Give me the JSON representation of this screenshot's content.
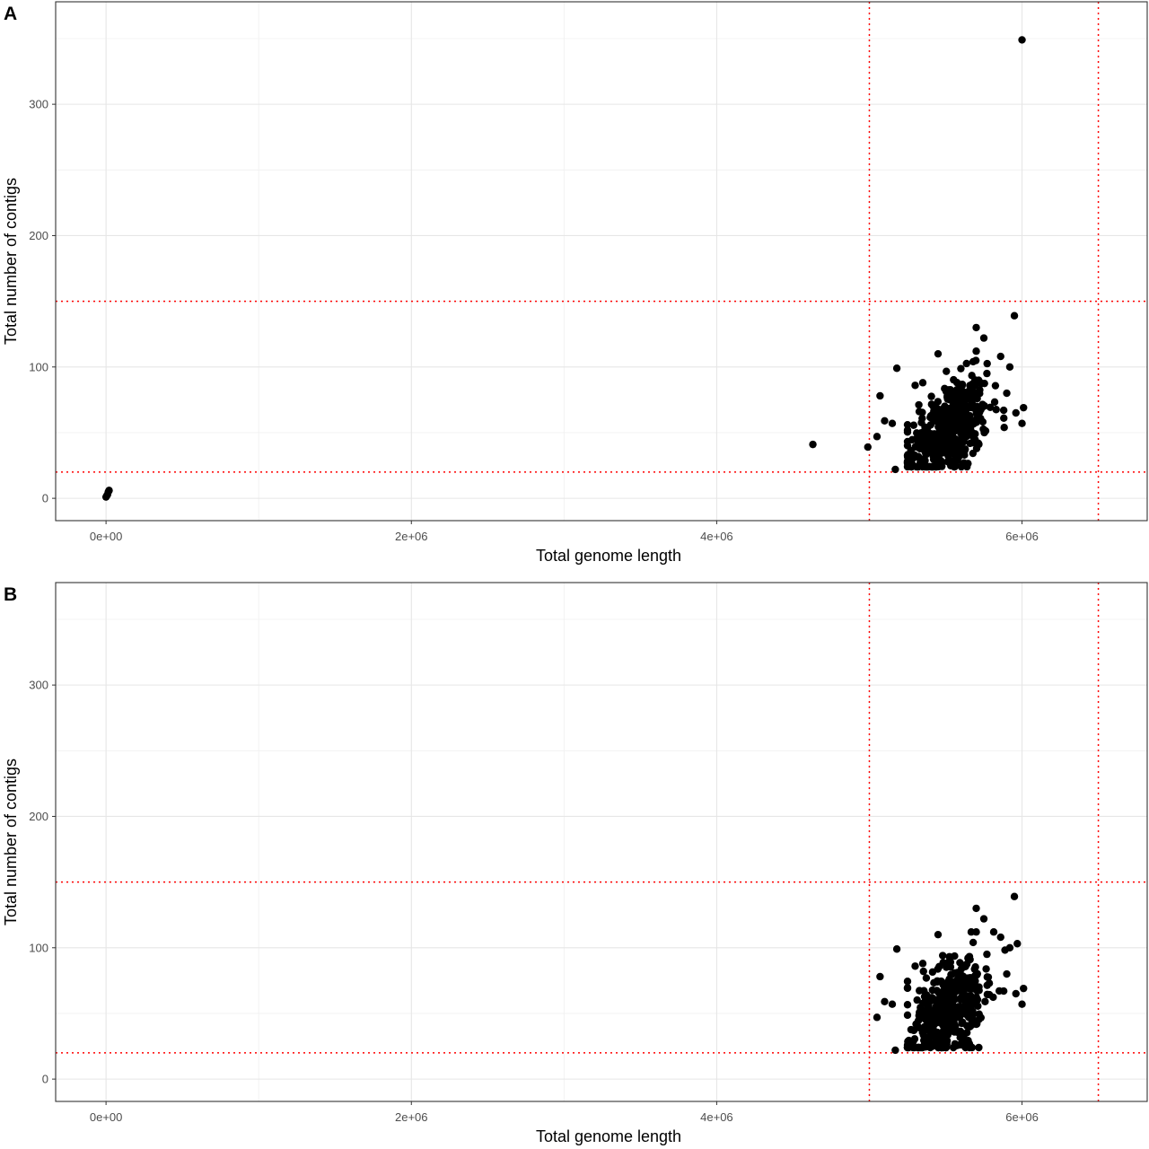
{
  "chart_data": [
    {
      "type": "scatter",
      "panel_label": "A",
      "xlabel": "Total genome length",
      "ylabel": "Total number of contigs",
      "xlim": [
        -330000,
        6820000
      ],
      "ylim": [
        -17,
        378
      ],
      "x_ticks": [
        {
          "value": 0,
          "label": "0e+00"
        },
        {
          "value": 2000000,
          "label": "2e+06"
        },
        {
          "value": 4000000,
          "label": "4e+06"
        },
        {
          "value": 6000000,
          "label": "6e+06"
        }
      ],
      "y_ticks": [
        {
          "value": 0,
          "label": "0"
        },
        {
          "value": 100,
          "label": "100"
        },
        {
          "value": 200,
          "label": "200"
        },
        {
          "value": 300,
          "label": "300"
        }
      ],
      "grid": true,
      "reference_lines": {
        "x": [
          5000000,
          6500000
        ],
        "y": [
          20,
          150
        ],
        "color": "#ff0000",
        "style": "dotted"
      },
      "points": [
        [
          0,
          1
        ],
        [
          5000,
          2
        ],
        [
          10000,
          3
        ],
        [
          15000,
          5
        ],
        [
          20000,
          6
        ],
        [
          4630000,
          41
        ],
        [
          4990000,
          39
        ],
        [
          6000000,
          349
        ],
        [
          5950000,
          139
        ],
        [
          5070000,
          78
        ],
        [
          5050000,
          47
        ],
        [
          5180000,
          99
        ],
        [
          5170000,
          22
        ],
        [
          5150000,
          57
        ],
        [
          5100000,
          59
        ],
        [
          5300000,
          86
        ],
        [
          5350000,
          88
        ],
        [
          5450000,
          110
        ],
        [
          5750000,
          122
        ],
        [
          5700000,
          130
        ],
        [
          5860000,
          108
        ],
        [
          5920000,
          100
        ],
        [
          5960000,
          65
        ],
        [
          6000000,
          57
        ],
        [
          6010000,
          69
        ],
        [
          5880000,
          67
        ],
        [
          5900000,
          80
        ],
        [
          5700000,
          112
        ],
        [
          5680000,
          104
        ],
        [
          5770000,
          95
        ]
      ],
      "cluster": {
        "count": 430,
        "x_mean": 5520000,
        "x_sd": 130000,
        "y_mean": 52,
        "y_sd": 18,
        "x_range": [
          5250000,
          5980000
        ],
        "y_range": [
          24,
          112
        ]
      },
      "point_color": "#000000"
    },
    {
      "type": "scatter",
      "panel_label": "B",
      "xlabel": "Total genome length",
      "ylabel": "Total number of contigs",
      "xlim": [
        -330000,
        6820000
      ],
      "ylim": [
        -17,
        378
      ],
      "x_ticks": [
        {
          "value": 0,
          "label": "0e+00"
        },
        {
          "value": 2000000,
          "label": "2e+06"
        },
        {
          "value": 4000000,
          "label": "4e+06"
        },
        {
          "value": 6000000,
          "label": "6e+06"
        }
      ],
      "y_ticks": [
        {
          "value": 0,
          "label": "0"
        },
        {
          "value": 100,
          "label": "100"
        },
        {
          "value": 200,
          "label": "200"
        },
        {
          "value": 300,
          "label": "300"
        }
      ],
      "grid": true,
      "reference_lines": {
        "x": [
          5000000,
          6500000
        ],
        "y": [
          20,
          150
        ],
        "color": "#ff0000",
        "style": "dotted"
      },
      "points": [
        [
          5950000,
          139
        ],
        [
          5070000,
          78
        ],
        [
          5050000,
          47
        ],
        [
          5180000,
          99
        ],
        [
          5170000,
          22
        ],
        [
          5150000,
          57
        ],
        [
          5100000,
          59
        ],
        [
          5300000,
          86
        ],
        [
          5350000,
          88
        ],
        [
          5450000,
          110
        ],
        [
          5750000,
          122
        ],
        [
          5700000,
          130
        ],
        [
          5860000,
          108
        ],
        [
          5920000,
          100
        ],
        [
          5960000,
          65
        ],
        [
          6000000,
          57
        ],
        [
          6010000,
          69
        ],
        [
          5880000,
          67
        ],
        [
          5900000,
          80
        ],
        [
          5700000,
          112
        ],
        [
          5680000,
          104
        ],
        [
          5770000,
          95
        ]
      ],
      "cluster": {
        "count": 430,
        "x_mean": 5520000,
        "x_sd": 130000,
        "y_mean": 52,
        "y_sd": 18,
        "x_range": [
          5250000,
          5980000
        ],
        "y_range": [
          24,
          112
        ]
      },
      "point_color": "#000000"
    }
  ]
}
